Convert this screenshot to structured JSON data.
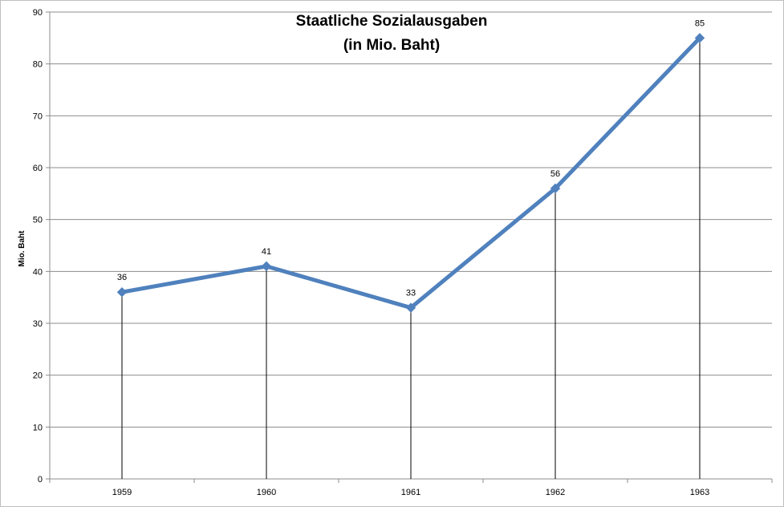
{
  "chart_data": {
    "type": "line",
    "title_line1": "Staatliche Sozialausgaben",
    "title_line2": "(in Mio. Baht)",
    "ylabel": "Mio. Baht",
    "xlabel": "",
    "categories": [
      "1959",
      "1960",
      "1961",
      "1962",
      "1963"
    ],
    "series": [
      {
        "values": [
          36,
          41,
          33,
          56,
          85
        ]
      }
    ],
    "ylim": [
      0,
      90
    ],
    "ytick_step": 10,
    "grid": true,
    "drop_lines": true,
    "data_labels": true,
    "line_color": "#4F81BD"
  }
}
